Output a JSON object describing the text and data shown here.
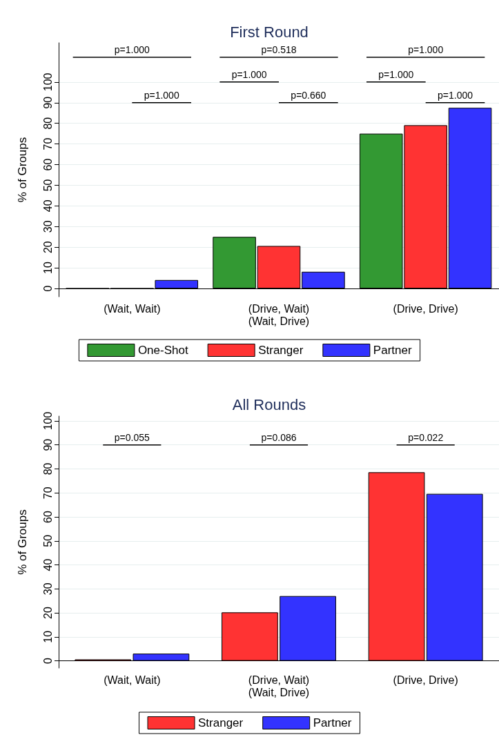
{
  "chart_data": [
    {
      "type": "bar",
      "title": "First Round",
      "ylabel": "% of Groups",
      "categories": [
        "(Wait, Wait)",
        "(Drive, Wait)\n(Wait, Drive)",
        "(Drive, Drive)"
      ],
      "series": [
        {
          "name": "One-Shot",
          "color": "#339933",
          "values": [
            0,
            25.0,
            75.0
          ]
        },
        {
          "name": "Stranger",
          "color": "#ff3333",
          "values": [
            0,
            20.6,
            79.1
          ]
        },
        {
          "name": "Partner",
          "color": "#3333ff",
          "values": [
            4.1,
            8.1,
            87.5
          ]
        }
      ],
      "ylim": [
        -4,
        119
      ],
      "yticks": [
        0,
        10,
        20,
        30,
        40,
        50,
        60,
        70,
        80,
        90,
        100
      ],
      "grid": "y",
      "legend": "bottom",
      "annotations": [
        "p=1.000",
        "p=1.000",
        "p=0.518",
        "p=1.000",
        "p=0.660",
        "p=1.000",
        "p=1.000",
        "p=1.000"
      ]
    },
    {
      "type": "bar",
      "title": "All Rounds",
      "ylabel": "% of Groups",
      "categories": [
        "(Wait, Wait)",
        "(Drive, Wait)\n(Wait, Drive)",
        "(Drive, Drive)"
      ],
      "series": [
        {
          "name": "Stranger",
          "color": "#ff3333",
          "values": [
            0.6,
            20.2,
            78.6
          ]
        },
        {
          "name": "Partner",
          "color": "#3333ff",
          "values": [
            3.0,
            27.0,
            69.6
          ]
        }
      ],
      "ylim": [
        -3,
        102
      ],
      "yticks": [
        0,
        10,
        20,
        30,
        40,
        50,
        60,
        70,
        80,
        90,
        100
      ],
      "grid": "y",
      "legend": "bottom",
      "annotations": [
        "p=0.055",
        "p=0.086",
        "p=0.022"
      ]
    }
  ]
}
